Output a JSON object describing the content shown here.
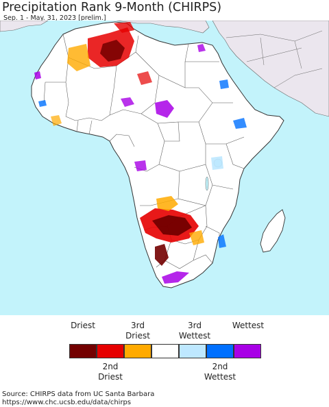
{
  "title": "Precipitation Rank 9-Month (CHIRPS)",
  "subtitle": "Sep. 1 - May. 31, 2023 [prelim.]",
  "legend": {
    "top_labels": [
      {
        "line1": "",
        "line2": "Driest"
      },
      {
        "line1": "3rd",
        "line2": "Driest"
      },
      {
        "line1": "3rd",
        "line2": "Wettest"
      },
      {
        "line1": "",
        "line2": "Wettest"
      }
    ],
    "bottom_labels": [
      {
        "line1": "2nd",
        "line2": "Driest"
      },
      {
        "line1": "2nd",
        "line2": "Wettest"
      }
    ],
    "categories": [
      {
        "name": "Driest",
        "color": "#730000"
      },
      {
        "name": "2nd Driest",
        "color": "#e60000"
      },
      {
        "name": "3rd Driest",
        "color": "#ffaa00"
      },
      {
        "name": "Normal",
        "color": "#ffffff"
      },
      {
        "name": "3rd Wettest",
        "color": "#bee8ff"
      },
      {
        "name": "2nd Wettest",
        "color": "#0070ff"
      },
      {
        "name": "Wettest",
        "color": "#a800e6"
      }
    ]
  },
  "source": {
    "line1": "Source: CHIRPS data from UC Santa Barbara",
    "line2": "https://www.chc.ucsb.edu/data/chirps"
  },
  "colors": {
    "ocean": "#c3f3fb",
    "land_inside": "#ffffff",
    "land_outside": "#ebe6ee",
    "borders": "#444444"
  }
}
